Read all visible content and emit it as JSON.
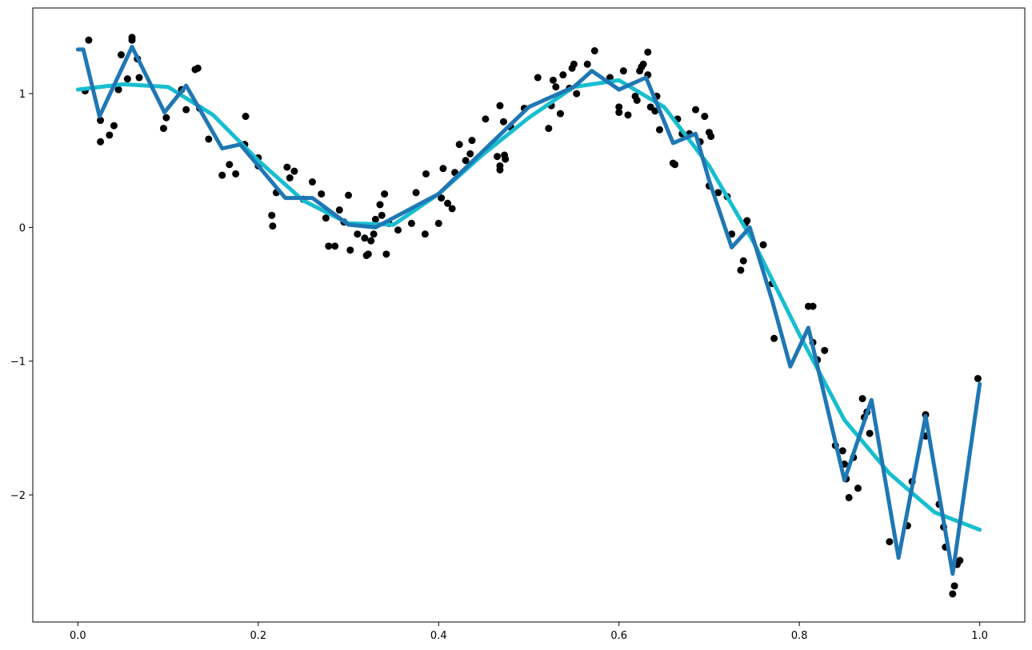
{
  "chart_data": {
    "type": "scatter",
    "xlim": [
      -0.05,
      1.05
    ],
    "ylim": [
      -2.95,
      1.64
    ],
    "xticks": [
      {
        "value": 0,
        "label": "0.0"
      },
      0.2,
      0.4,
      0.6,
      0.8,
      {
        "value": 1,
        "label": "1.0"
      }
    ],
    "yticks": [
      {
        "value": -2,
        "label": "−2"
      },
      {
        "value": -1,
        "label": "−1"
      },
      0,
      1
    ],
    "grid": false,
    "series": [
      {
        "type": "scatter",
        "color": "#000000",
        "x": [
          0.008,
          0.012,
          0.025,
          0.025,
          0.035,
          0.04,
          0.045,
          0.048,
          0.055,
          0.06,
          0.06,
          0.066,
          0.068,
          0.095,
          0.098,
          0.115,
          0.12,
          0.13,
          0.133,
          0.135,
          0.145,
          0.16,
          0.168,
          0.175,
          0.185,
          0.186,
          0.2,
          0.2,
          0.215,
          0.216,
          0.22,
          0.232,
          0.235,
          0.24,
          0.25,
          0.26,
          0.27,
          0.275,
          0.278,
          0.285,
          0.29,
          0.295,
          0.3,
          0.302,
          0.31,
          0.318,
          0.32,
          0.322,
          0.325,
          0.328,
          0.33,
          0.335,
          0.337,
          0.34,
          0.342,
          0.345,
          0.355,
          0.37,
          0.375,
          0.385,
          0.386,
          0.4,
          0.403,
          0.405,
          0.41,
          0.415,
          0.418,
          0.423,
          0.43,
          0.435,
          0.437,
          0.452,
          0.465,
          0.468,
          0.468,
          0.468,
          0.472,
          0.473,
          0.474,
          0.48,
          0.495,
          0.51,
          0.522,
          0.525,
          0.527,
          0.53,
          0.535,
          0.538,
          0.545,
          0.548,
          0.55,
          0.553,
          0.565,
          0.573,
          0.59,
          0.6,
          0.6,
          0.605,
          0.61,
          0.618,
          0.62,
          0.623,
          0.625,
          0.627,
          0.632,
          0.632,
          0.635,
          0.64,
          0.642,
          0.645,
          0.66,
          0.662,
          0.665,
          0.67,
          0.678,
          0.685,
          0.69,
          0.695,
          0.7,
          0.702,
          0.7,
          0.71,
          0.72,
          0.725,
          0.735,
          0.738,
          0.74,
          0.742,
          0.76,
          0.77,
          0.772,
          0.81,
          0.815,
          0.815,
          0.82,
          0.828,
          0.84,
          0.848,
          0.85,
          0.852,
          0.855,
          0.86,
          0.865,
          0.87,
          0.872,
          0.875,
          0.878,
          0.9,
          0.92,
          0.925,
          0.94,
          0.94,
          0.955,
          0.96,
          0.962,
          0.97,
          0.972,
          0.975,
          0.978,
          0.998
        ],
        "values": [
          1.02,
          1.4,
          0.8,
          0.64,
          0.69,
          0.76,
          1.03,
          1.29,
          1.11,
          1.42,
          1.4,
          1.26,
          1.12,
          0.74,
          0.82,
          1.03,
          0.88,
          1.18,
          1.19,
          0.89,
          0.66,
          0.39,
          0.47,
          0.4,
          0.62,
          0.83,
          0.52,
          0.46,
          0.09,
          0.01,
          0.26,
          0.45,
          0.37,
          0.42,
          0.21,
          0.34,
          0.25,
          0.07,
          -0.14,
          -0.14,
          0.13,
          0.04,
          0.24,
          -0.17,
          -0.05,
          -0.08,
          -0.21,
          -0.2,
          -0.1,
          -0.05,
          0.06,
          0.17,
          0.09,
          0.25,
          -0.2,
          0.03,
          -0.02,
          0.03,
          0.26,
          -0.05,
          0.4,
          0.03,
          0.22,
          0.44,
          0.18,
          0.14,
          0.41,
          0.62,
          0.5,
          0.55,
          0.65,
          0.81,
          0.53,
          0.46,
          0.43,
          0.91,
          0.79,
          0.54,
          0.51,
          0.75,
          0.89,
          1.12,
          0.74,
          0.91,
          1.1,
          1.05,
          0.85,
          1.14,
          1.04,
          1.19,
          1.22,
          1.0,
          1.22,
          1.32,
          1.12,
          0.86,
          0.9,
          1.17,
          0.84,
          0.98,
          0.95,
          1.17,
          1.2,
          1.22,
          1.31,
          1.14,
          0.9,
          0.87,
          0.98,
          0.73,
          0.48,
          0.47,
          0.81,
          0.7,
          0.7,
          0.88,
          0.64,
          0.83,
          0.71,
          0.68,
          0.31,
          0.26,
          0.23,
          -0.05,
          -0.32,
          -0.25,
          0.03,
          0.05,
          -0.13,
          -0.42,
          -0.83,
          -0.59,
          -0.59,
          -0.86,
          -0.99,
          -0.92,
          -1.63,
          -1.67,
          -1.77,
          -1.88,
          -2.02,
          -1.72,
          -1.95,
          -1.28,
          -1.42,
          -1.38,
          -1.54,
          -2.35,
          -2.23,
          -1.9,
          -1.4,
          -1.56,
          -2.07,
          -2.24,
          -2.39,
          -2.74,
          -2.68,
          -2.52,
          -2.49,
          -1.13
        ]
      },
      {
        "type": "line",
        "color": "#17becf",
        "x": [
          0,
          0.05,
          0.1,
          0.15,
          0.2,
          0.25,
          0.3,
          0.35,
          0.4,
          0.45,
          0.5,
          0.55,
          0.6,
          0.65,
          0.7,
          0.75,
          0.8,
          0.85,
          0.9,
          0.95,
          1.0
        ],
        "values": [
          1.03,
          1.07,
          1.05,
          0.84,
          0.5,
          0.2,
          0.03,
          0.02,
          0.25,
          0.55,
          0.82,
          1.05,
          1.1,
          0.9,
          0.46,
          -0.12,
          -0.8,
          -1.44,
          -1.84,
          -2.13,
          -2.26
        ]
      },
      {
        "type": "line",
        "color": "#1f77b4",
        "x": [
          0,
          0.006,
          0.024,
          0.06,
          0.096,
          0.12,
          0.16,
          0.18,
          0.2,
          0.23,
          0.26,
          0.3,
          0.33,
          0.4,
          0.5,
          0.55,
          0.57,
          0.6,
          0.63,
          0.66,
          0.685,
          0.7,
          0.725,
          0.745,
          0.77,
          0.79,
          0.81,
          0.85,
          0.88,
          0.91,
          0.94,
          0.97,
          1.0
        ],
        "values": [
          1.33,
          1.33,
          0.83,
          1.35,
          0.86,
          1.06,
          0.59,
          0.62,
          0.46,
          0.22,
          0.22,
          0.02,
          0.0,
          0.25,
          0.9,
          1.05,
          1.17,
          1.03,
          1.12,
          0.63,
          0.7,
          0.35,
          -0.15,
          0.0,
          -0.55,
          -1.04,
          -0.75,
          -1.89,
          -1.29,
          -2.47,
          -1.41,
          -2.59,
          -1.17
        ]
      }
    ]
  }
}
